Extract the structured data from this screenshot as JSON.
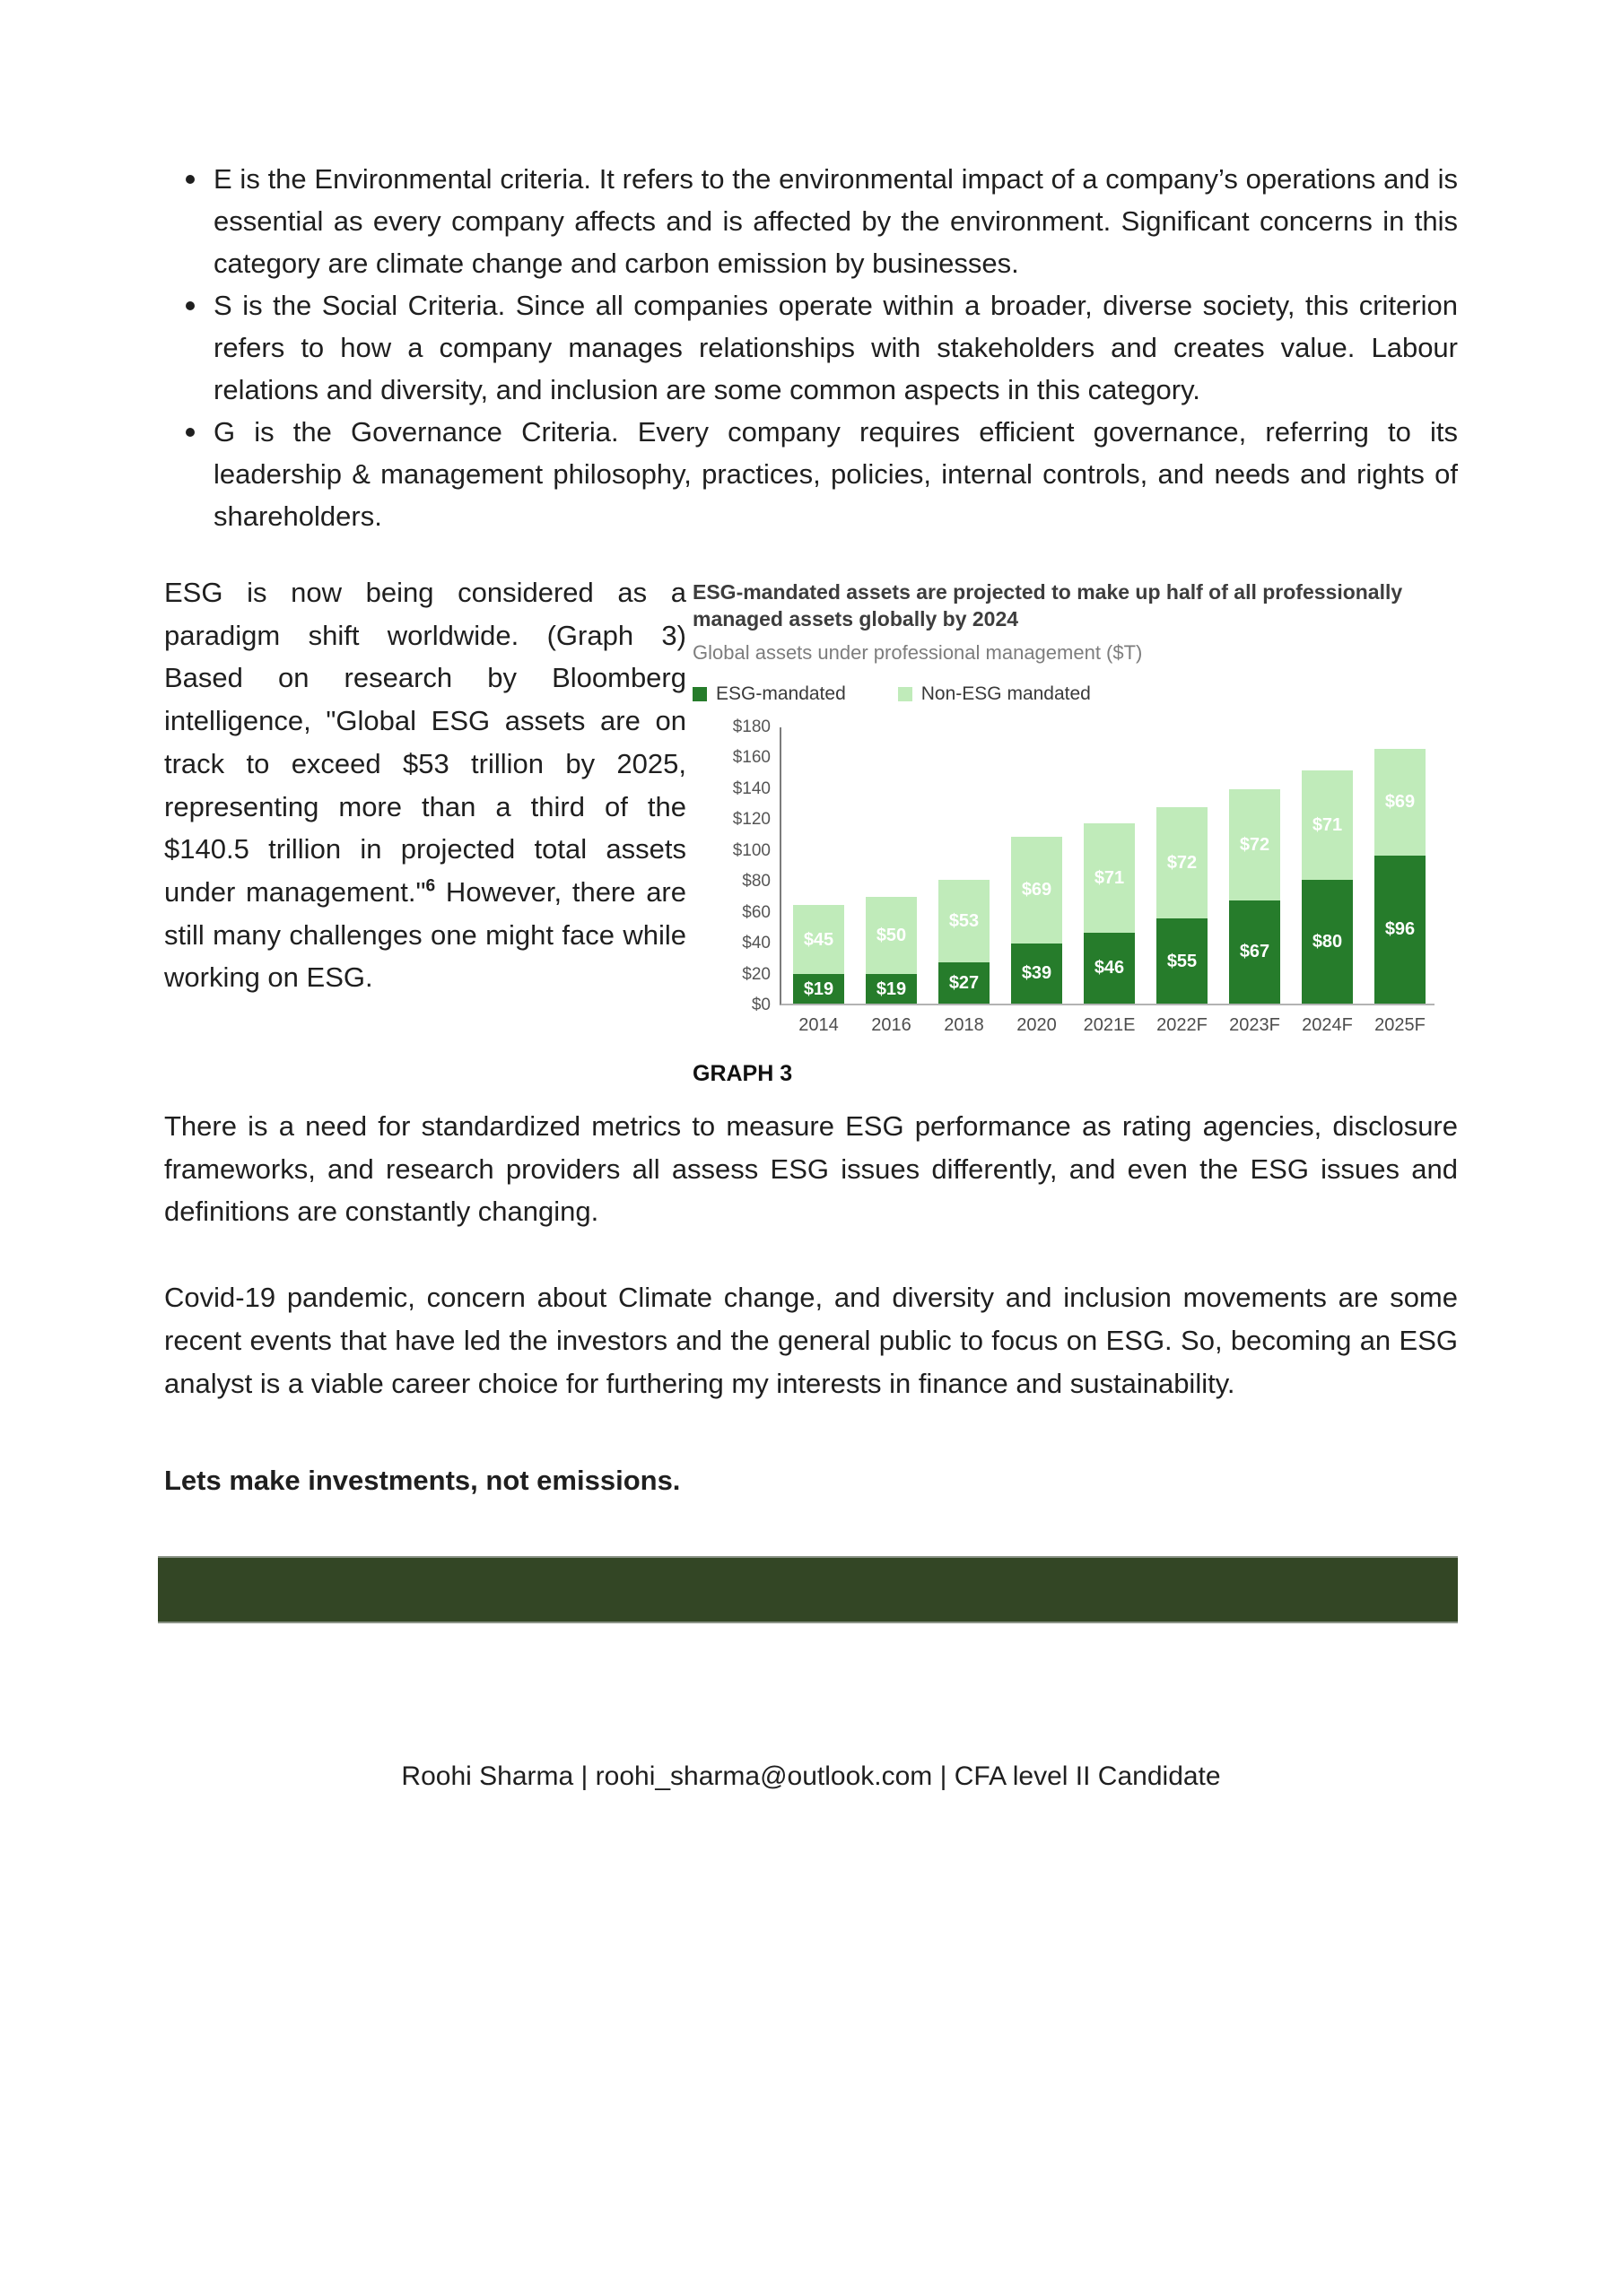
{
  "content": {
    "bullets": [
      "E is the Environmental criteria. It refers to the environmental impact of a company’s operations and is essential as every company affects and is affected by the environment. Significant concerns in this category are climate change and carbon emission by businesses.",
      "S is the Social Criteria. Since all companies operate within a broader, diverse society, this criterion refers to how a company manages relationships with stakeholders and creates value. Labour relations and diversity, and inclusion are some common aspects in this category.",
      "G is the Governance Criteria. Every company requires efficient governance, referring to its leadership & management philosophy, practices, policies, internal controls, and needs and rights of shareholders."
    ],
    "esg_paragraph": {
      "before_sup": "ESG is now being considered as a paradigm shift worldwide. (Graph 3) Based on research by Bloomberg intelligence, \"Global ESG assets are on track to exceed $53 trillion by 2025, representing more than a third of the $140.5 trillion in projected total assets under management.\"",
      "sup": "6",
      "after_sup": " However, there are still many challenges one might face while working on ESG."
    },
    "paragraph_standardized": "There is a need for standardized metrics to measure ESG performance as rating agencies, disclosure frameworks, and research providers all assess ESG issues differently, and even the ESG issues and definitions are constantly changing.",
    "paragraph_covid": "Covid-19 pandemic, concern about Climate change, and diversity and inclusion movements are some recent events that have led the investors and the general public to focus on ESG. So, becoming an ESG analyst is a viable career choice for furthering my interests in finance and sustainability.",
    "tagline": "Lets make investments, not emissions.",
    "footer": "Roohi Sharma | roohi_sharma@outlook.com | CFA level II Candidate"
  },
  "chart_data": {
    "type": "bar",
    "stacked": true,
    "title": "ESG-mandated assets are projected to make up half of all professionally managed assets globally by 2024",
    "subtitle": "Global assets under professional management ($T)",
    "categories": [
      "2014",
      "2016",
      "2018",
      "2020",
      "2021E",
      "2022F",
      "2023F",
      "2024F",
      "2025F"
    ],
    "series": [
      {
        "name": "ESG-mandated",
        "color": "#267c2b",
        "values": [
          19,
          19,
          27,
          39,
          46,
          55,
          67,
          80,
          96
        ]
      },
      {
        "name": "Non-ESG mandated",
        "color": "#c0ebba",
        "values": [
          45,
          50,
          53,
          69,
          71,
          72,
          72,
          71,
          69
        ]
      }
    ],
    "ylim": [
      0,
      180
    ],
    "y_tick_step": 20,
    "y_tick_labels": [
      "$0",
      "$20",
      "$40",
      "$60",
      "$80",
      "$100",
      "$120",
      "$140",
      "$160",
      "$180"
    ],
    "value_prefix": "$",
    "grid": false,
    "legend_position": "top-left",
    "caption": "GRAPH 3",
    "divider_color": "#334625"
  }
}
